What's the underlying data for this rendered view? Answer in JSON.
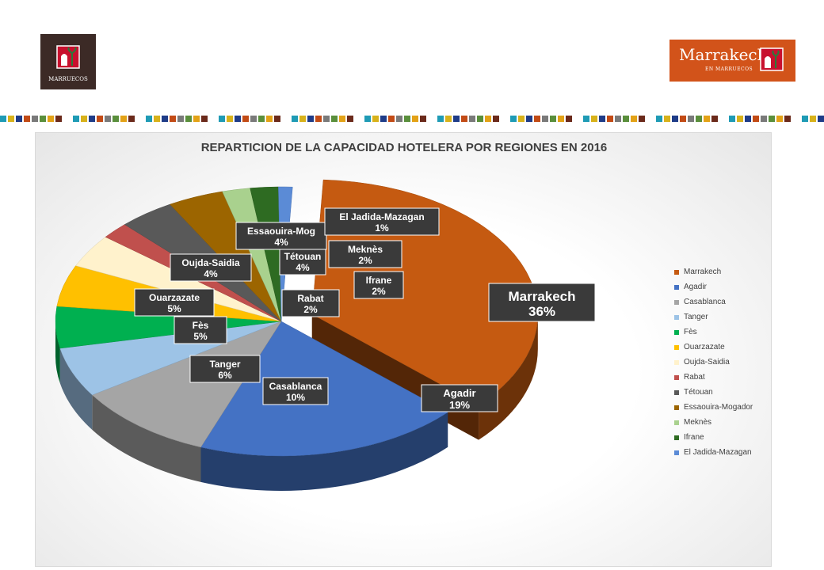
{
  "header": {
    "left_logo_text": "MARRUECOS",
    "right_logo_title": "Marrakech",
    "right_logo_subtitle": "EN MARRUECOS"
  },
  "colors": {
    "pattern": [
      "#1f9bb5",
      "#d8b21b",
      "#1f3c88",
      "#c24b16",
      "#7a7a7a",
      "#5a8f3c",
      "#e3a217",
      "#6b2a1b"
    ]
  },
  "chart_data": {
    "type": "pie",
    "title": "REPARTICION DE LA CAPACIDAD HOTELERA POR REGIONES  EN 2016",
    "legend_position": "right",
    "exploded": [
      "Marrakech"
    ],
    "categories": [
      "Marrakech",
      "Agadir",
      "Casablanca",
      "Tanger",
      "Fès",
      "Ouarzazate",
      "Oujda-Saidia",
      "Rabat",
      "Tétouan",
      "Essaouira-Mogador",
      "Meknès",
      "Ifrane",
      "El Jadida-Mazagan"
    ],
    "values": [
      36,
      19,
      10,
      6,
      5,
      5,
      4,
      2,
      4,
      4,
      2,
      2,
      1
    ],
    "labels": [
      "Marrakech",
      "Agadir",
      "Casablanca",
      "Tanger",
      "Fès",
      "Ouarzazate",
      "Oujda-Saidia",
      "Rabat",
      "Tétouan",
      "Essaouira-Mog",
      "Meknès",
      "Ifrane",
      "El Jadida-Mazagan"
    ],
    "value_labels": [
      "36%",
      "19%",
      "10%",
      "6%",
      "5%",
      "5%",
      "4%",
      "2%",
      "4%",
      "4%",
      "2%",
      "2%",
      "1%"
    ],
    "colors": [
      "#c55a11",
      "#4472c4",
      "#a5a5a5",
      "#9dc3e6",
      "#00b050",
      "#ffc000",
      "#fff2cc",
      "#c0504d",
      "#595959",
      "#9c6500",
      "#a9d18e",
      "#2e6b22",
      "#5b8bd6"
    ]
  }
}
